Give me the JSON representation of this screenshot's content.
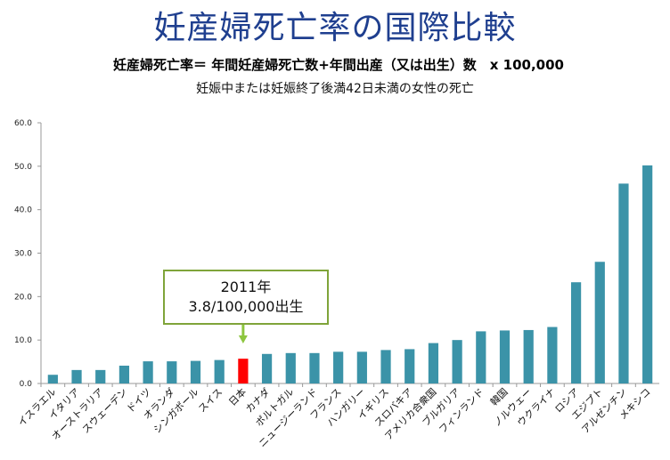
{
  "title": "妊産婦死亡率の国際比較",
  "formula": "妊産婦死亡率＝ 年間妊産婦死亡数+年間出産（又は出生）数　x 100,000",
  "subtitle": "妊娠中または妊娠終了後満42日未満の女性の死亡",
  "callout": {
    "line1": "2011年",
    "line2": "3.8/100,000出生"
  },
  "colors": {
    "bar": "#3b93a8",
    "highlight": "#ff0000",
    "callout_border": "#7fa43a",
    "arrow": "#8dc63f",
    "title": "#1f3f8f"
  },
  "chart_data": {
    "type": "bar",
    "categories": [
      "イスラエル",
      "イタリア",
      "オーストラリア",
      "スウェーデン",
      "ドイツ",
      "オランダ",
      "シンガポール",
      "スイス",
      "日本",
      "カナダ",
      "ポルトガル",
      "ニュージーランド",
      "フランス",
      "ハンガリー",
      "イギリス",
      "スロバキア",
      "アメリカ合衆国",
      "ブルガリア",
      "フィンランド",
      "韓国",
      "ノルウェー",
      "ウクライナ",
      "ロシア",
      "エジプト",
      "アルゼンチン",
      "メキシコ"
    ],
    "values": [
      2.0,
      3.1,
      3.1,
      4.1,
      5.1,
      5.1,
      5.2,
      5.4,
      5.7,
      6.8,
      7.0,
      7.0,
      7.3,
      7.3,
      7.7,
      7.9,
      9.3,
      10.0,
      12.0,
      12.2,
      12.3,
      13.0,
      23.3,
      28.0,
      46.0,
      50.2
    ],
    "highlight_category": "日本",
    "yticks": [
      "0.0",
      "10.0",
      "20.0",
      "30.0",
      "40.0",
      "50.0",
      "60.0"
    ],
    "ylim": [
      0,
      60
    ],
    "grid": false
  }
}
